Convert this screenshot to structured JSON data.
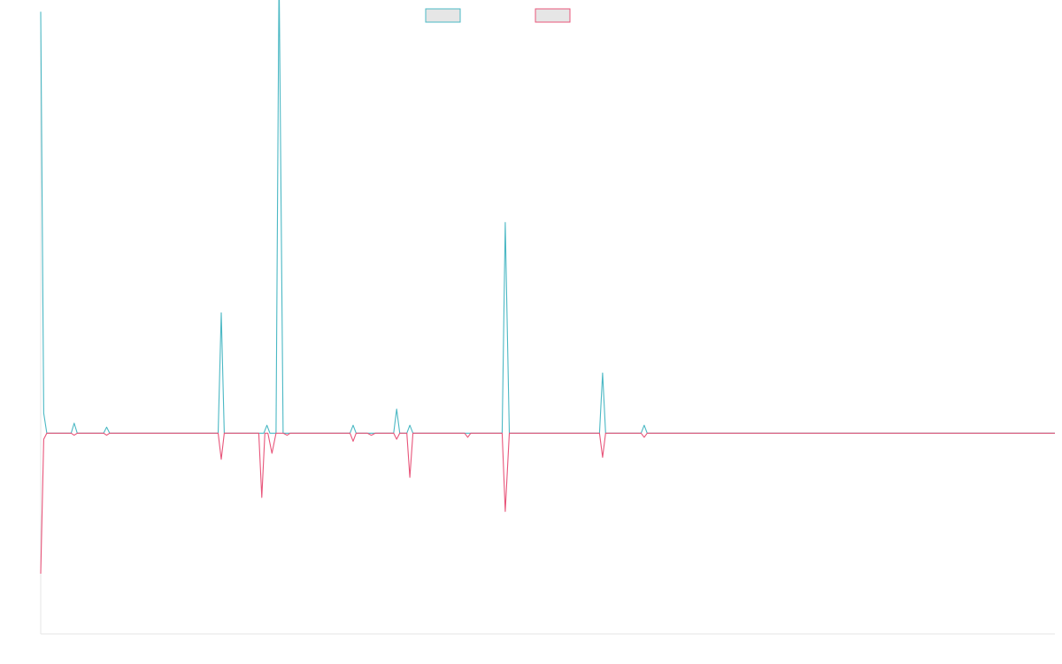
{
  "chart_data": {
    "type": "line",
    "title": "",
    "xlabel": "",
    "ylabel": "",
    "legend": {
      "position": "top-center",
      "entries": [
        {
          "name": "",
          "stroke": "#4bb8c4",
          "fill": "#e6e6e6"
        },
        {
          "name": "",
          "stroke": "#e8557a",
          "fill": "#e6e6e6"
        }
      ]
    },
    "x_domain": [
      0,
      100
    ],
    "ylim": [
      -100,
      200
    ],
    "grid": false,
    "series": [
      {
        "name": "",
        "color": "#4bb8c4",
        "x": [
          0,
          0.3,
          0.6,
          2,
          3,
          3.3,
          3.6,
          4,
          5,
          6.2,
          6.5,
          6.8,
          7,
          7.3,
          7.5,
          17.5,
          17.8,
          18.1,
          18.3,
          21.5,
          22,
          22.3,
          22.6,
          22.8,
          23.2,
          23.5,
          23.9,
          24.3,
          24.6,
          30.5,
          30.8,
          31.1,
          32.2,
          32.6,
          33,
          34.8,
          35.1,
          35.4,
          36.1,
          36.4,
          36.7,
          41.8,
          42.1,
          42.4,
          45.5,
          45.8,
          46.2,
          55.1,
          55.4,
          55.7,
          59.2,
          59.5,
          59.8,
          100
        ],
        "y": [
          210,
          10,
          0,
          0,
          0,
          5,
          0,
          0,
          0,
          0,
          3,
          0,
          0,
          0,
          0,
          0,
          60,
          0,
          0,
          0,
          0,
          4,
          0,
          0,
          0,
          230,
          0,
          0,
          0,
          0,
          4,
          0,
          0,
          0,
          0,
          0,
          12,
          0,
          0,
          4,
          0,
          0,
          0,
          0,
          0,
          105,
          0,
          0,
          30,
          0,
          0,
          4,
          0,
          0
        ]
      },
      {
        "name": "",
        "color": "#e8557a",
        "x": [
          0,
          0.3,
          0.6,
          2,
          3,
          3.3,
          3.6,
          6.2,
          6.5,
          6.8,
          7,
          7.5,
          17.5,
          17.8,
          18.1,
          21.5,
          21.8,
          22.1,
          22.4,
          22.8,
          23.2,
          23.5,
          23.9,
          24.3,
          24.6,
          30.5,
          30.8,
          31.1,
          32.2,
          32.6,
          33,
          34.8,
          35.1,
          35.4,
          36.1,
          36.4,
          36.7,
          41.8,
          42.1,
          42.4,
          45.5,
          45.8,
          46.2,
          55.1,
          55.4,
          55.7,
          59.2,
          59.5,
          59.8,
          100
        ],
        "y": [
          -70,
          -3,
          0,
          0,
          0,
          -1,
          0,
          0,
          -1,
          0,
          0,
          0,
          0,
          -13,
          0,
          0,
          -32,
          0,
          0,
          -10,
          0,
          0,
          0,
          -1,
          0,
          0,
          -4,
          0,
          0,
          -1,
          0,
          0,
          -3,
          0,
          0,
          -22,
          0,
          0,
          -2,
          0,
          0,
          -39,
          0,
          0,
          -12,
          0,
          0,
          -2,
          0,
          0
        ]
      }
    ]
  }
}
